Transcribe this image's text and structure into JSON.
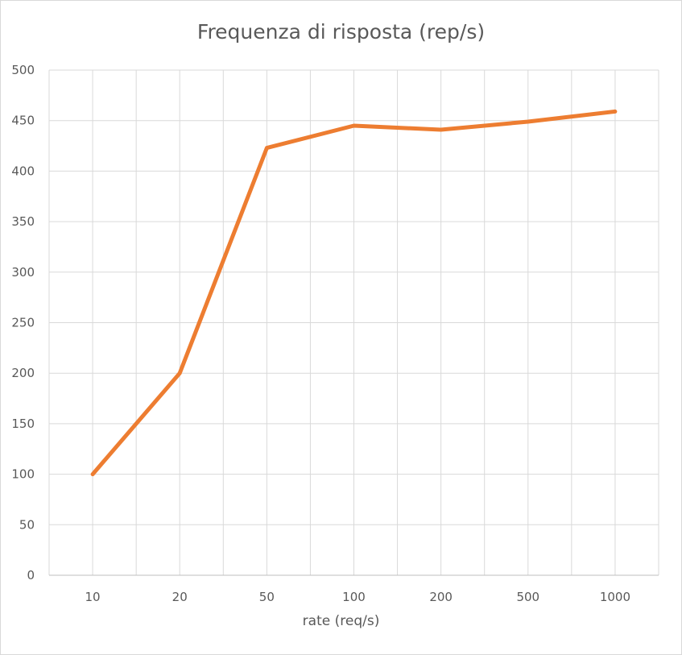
{
  "chart_data": {
    "type": "line",
    "title": "Frequenza di risposta (rep/s)",
    "xlabel": "rate (req/s)",
    "ylabel": "",
    "categories": [
      "10",
      "20",
      "50",
      "100",
      "200",
      "500",
      "1000"
    ],
    "series": [
      {
        "values": [
          100,
          200,
          423,
          445,
          441,
          449,
          459
        ],
        "color": "#ed7d31"
      }
    ],
    "ylim": [
      0,
      500
    ],
    "yticks": [
      0,
      50,
      100,
      150,
      200,
      250,
      300,
      350,
      400,
      450,
      500
    ],
    "grid": true,
    "legend": "none"
  }
}
